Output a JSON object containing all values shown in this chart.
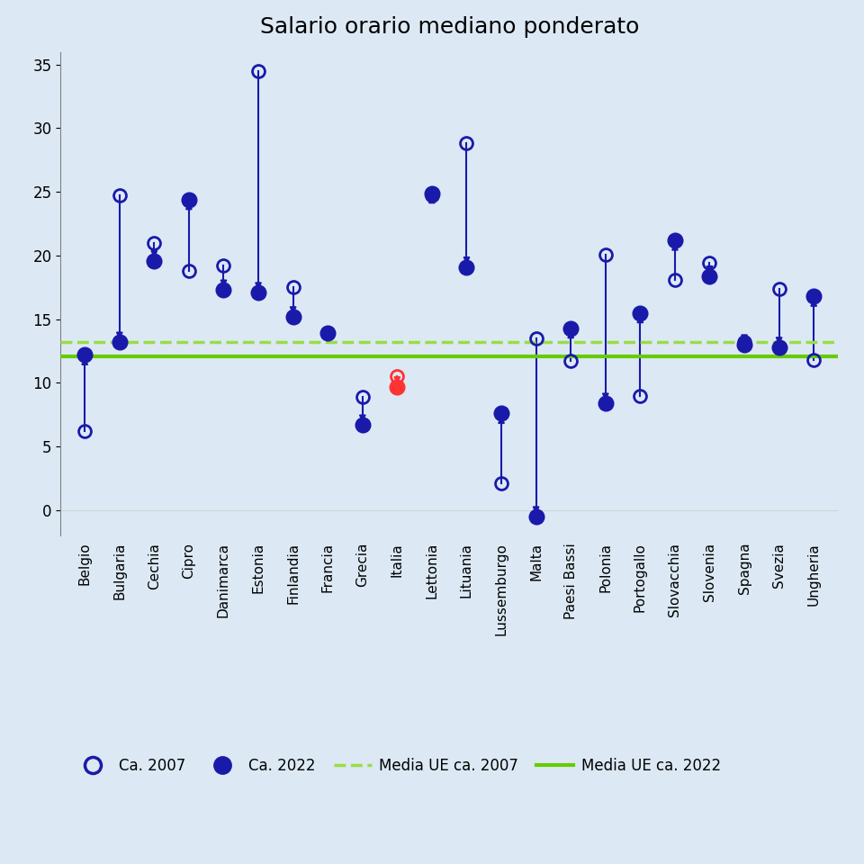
{
  "title": "Salario orario mediano ponderato",
  "background_color": "#dce9f5",
  "plot_bg_color": "#ffffff",
  "countries": [
    "Belgio",
    "Bulgaria",
    "Cechia",
    "Cipro",
    "Danimarca",
    "Estonia",
    "Finlandia",
    "Francia",
    "Grecia",
    "Italia",
    "Lettonia",
    "Lituania",
    "Lussemburgo",
    "Malta",
    "Paesi Bassi",
    "Polonia",
    "Portogallo",
    "Slovacchia",
    "Slovenia",
    "Spagna",
    "Svezia",
    "Ungheria"
  ],
  "val_2007": [
    6.2,
    24.7,
    21.0,
    18.8,
    19.2,
    34.5,
    17.5,
    13.9,
    8.9,
    10.5,
    24.7,
    28.8,
    2.1,
    13.5,
    11.7,
    20.1,
    9.0,
    18.1,
    19.4,
    13.2,
    17.4,
    11.8
  ],
  "val_2022": [
    12.2,
    13.2,
    19.6,
    24.4,
    17.3,
    17.1,
    15.2,
    13.9,
    6.7,
    9.7,
    24.9,
    19.1,
    7.6,
    -0.5,
    14.3,
    8.4,
    15.5,
    21.2,
    18.4,
    13.0,
    12.8,
    16.8
  ],
  "media_2007": 13.2,
  "media_2022": 12.1,
  "ylim": [
    -2,
    36
  ],
  "yticks": [
    0,
    5,
    10,
    15,
    20,
    25,
    30,
    35
  ],
  "color_main": "#1a1aaa",
  "color_italia": "#ff3333",
  "color_media_2007": "#99dd44",
  "color_media_2022": "#66cc00",
  "legend_labels": [
    "Ca. 2007",
    "Ca. 2022",
    "Media UE ca. 2007",
    "Media UE ca. 2022"
  ]
}
